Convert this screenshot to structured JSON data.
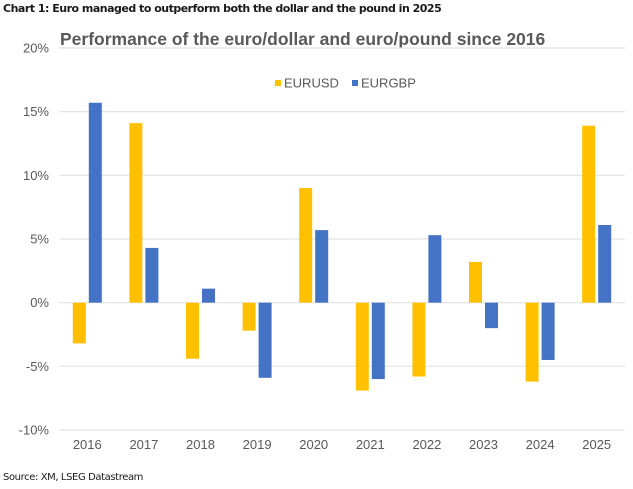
{
  "caption": "Chart 1: Euro managed to outperform both the dollar and the pound in 2025",
  "source": "Source: XM, LSEG Datastream",
  "chart_data": {
    "type": "bar",
    "title": "Performance of the euro/dollar and euro/pound since 2016",
    "xlabel": "",
    "ylabel": "",
    "categories": [
      "2016",
      "2017",
      "2018",
      "2019",
      "2020",
      "2021",
      "2022",
      "2023",
      "2024",
      "2025"
    ],
    "series": [
      {
        "name": "EURUSD",
        "color": "#FFC000",
        "values": [
          -3.2,
          14.1,
          -4.4,
          -2.2,
          9.0,
          -6.9,
          -5.8,
          3.2,
          -6.2,
          13.9
        ]
      },
      {
        "name": "EURGBP",
        "color": "#4472C4",
        "values": [
          15.7,
          4.3,
          1.1,
          -5.9,
          5.7,
          -6.0,
          5.3,
          -2.0,
          -4.5,
          6.1
        ]
      }
    ],
    "ylim": [
      -10,
      20
    ],
    "yticks": [
      20,
      15,
      10,
      5,
      0,
      -5,
      -10
    ],
    "ytick_labels": [
      "20%",
      "15%",
      "10%",
      "5%",
      "0%",
      "-5%",
      "-10%"
    ],
    "grid": true,
    "legend_position": "top-center",
    "unit": "%"
  }
}
